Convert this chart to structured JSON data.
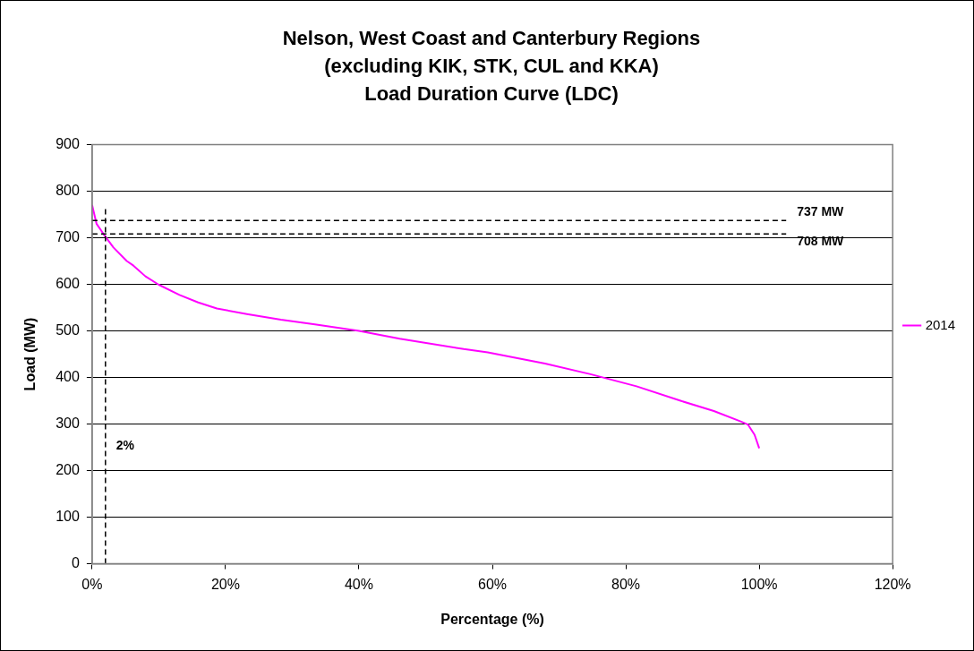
{
  "chart_data": {
    "type": "line",
    "title": "Nelson, West Coast and Canterbury Regions\n(excluding KIK, STK, CUL and KKA)\nLoad Duration Curve (LDC)",
    "xlabel": "Percentage (%)",
    "ylabel": "Load (MW)",
    "x": [
      0,
      0.66,
      1.9,
      3.2,
      5.2,
      6.2,
      8,
      10,
      13.1,
      15.9,
      18.7,
      23.2,
      28.3,
      33.4,
      40,
      46.1,
      55.7,
      59.3,
      67.9,
      74.7,
      81.6,
      88.2,
      93.2,
      97.3,
      98.3,
      99.3,
      100
    ],
    "series": [
      {
        "name": "2014",
        "color": "#ff00ff",
        "values": [
          770,
          730,
          704,
          679,
          650,
          640,
          617,
          599,
          577,
          561,
          548,
          536,
          524,
          514,
          500,
          483,
          461,
          454,
          430,
          407,
          381,
          350,
          328,
          305,
          299,
          277,
          248
        ]
      }
    ],
    "xlim": [
      0,
      120
    ],
    "xticks": [
      {
        "value": 0,
        "label": "0%"
      },
      {
        "value": 20,
        "label": "20%"
      },
      {
        "value": 40,
        "label": "40%"
      },
      {
        "value": 60,
        "label": "60%"
      },
      {
        "value": 80,
        "label": "80%"
      },
      {
        "value": 100,
        "label": "100%"
      },
      {
        "value": 120,
        "label": "120%"
      }
    ],
    "ylim": [
      0,
      900
    ],
    "yticks": [
      0,
      100,
      200,
      300,
      400,
      500,
      600,
      700,
      800,
      900
    ],
    "ref_lines": [
      {
        "axis": "y",
        "value": 737,
        "label": "737 MW",
        "color": "#000000",
        "line_style": "dashed"
      },
      {
        "axis": "y",
        "value": 708,
        "label": "708 MW",
        "color": "#000000",
        "line_style": "dashed"
      },
      {
        "axis": "x",
        "value": 2,
        "label": "2%",
        "color": "#000000",
        "line_style": "dashed"
      }
    ],
    "grid": "y",
    "legend": "right",
    "marker": "none",
    "line_style": "solid"
  }
}
